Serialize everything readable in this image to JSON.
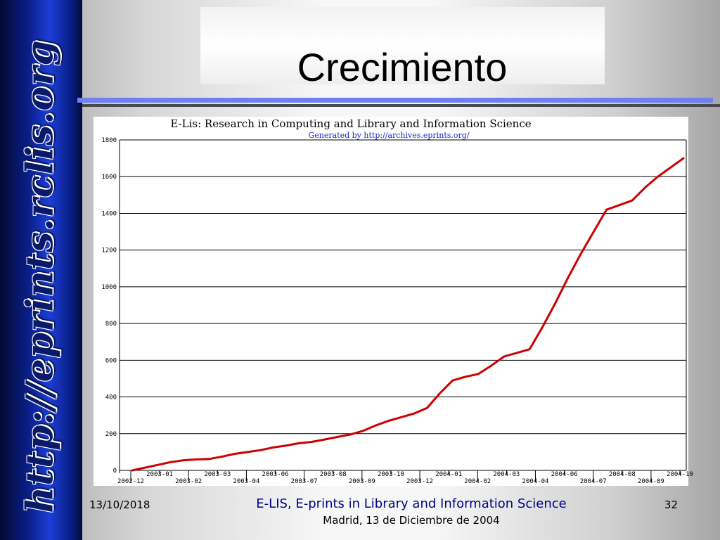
{
  "slide": {
    "title": "Crecimiento",
    "side_url": "http://eprints.rclis.org",
    "footer_date": "13/10/2018",
    "footer_org": "E-LIS, E-prints in Library and Information Science",
    "footer_place": "Madrid, 13 de Diciembre de 2004",
    "page_number": "32"
  },
  "chart_data": {
    "type": "line",
    "title": "E-Lis: Research in Computing and Library and Information Science",
    "subtitle": "Generated by http://archives.eprints.org/",
    "xlabel": "",
    "ylabel": "",
    "ylim": [
      0,
      1800
    ],
    "yticks": [
      0,
      200,
      400,
      600,
      800,
      1000,
      1200,
      1400,
      1600,
      1800
    ],
    "grid": true,
    "x": [
      "2002-12",
      "2003-01",
      "2003-02",
      "2003-03",
      "2003-04",
      "2003-06",
      "2003-07",
      "2003-08",
      "2003-09",
      "2003-10",
      "2003-12",
      "2004-01",
      "2004-02",
      "2004-03",
      "2004-04",
      "2004-06",
      "2004-07",
      "2004-08",
      "2004-09",
      "2004-10"
    ],
    "series": [
      {
        "name": "",
        "values": [
          [
            0,
            0
          ],
          [
            1,
            30
          ],
          [
            1.5,
            45
          ],
          [
            2,
            55
          ],
          [
            2.5,
            60
          ],
          [
            3,
            62
          ],
          [
            3.5,
            75
          ],
          [
            4,
            90
          ],
          [
            4.5,
            100
          ],
          [
            5,
            110
          ],
          [
            5.5,
            125
          ],
          [
            6,
            135
          ],
          [
            6.5,
            148
          ],
          [
            7,
            155
          ],
          [
            7.5,
            168
          ],
          [
            8,
            182
          ],
          [
            8.5,
            195
          ],
          [
            9,
            215
          ],
          [
            9.5,
            245
          ],
          [
            10,
            270
          ],
          [
            10.5,
            290
          ],
          [
            11,
            310
          ],
          [
            11.5,
            340
          ],
          [
            12,
            420
          ],
          [
            12.5,
            490
          ],
          [
            13,
            510
          ],
          [
            13.5,
            525
          ],
          [
            14,
            570
          ],
          [
            14.5,
            620
          ],
          [
            15,
            640
          ],
          [
            15.5,
            660
          ],
          [
            16,
            780
          ],
          [
            16.5,
            910
          ],
          [
            17,
            1050
          ],
          [
            17.5,
            1180
          ],
          [
            18,
            1300
          ],
          [
            18.5,
            1420
          ],
          [
            19,
            1445
          ],
          [
            19.5,
            1470
          ],
          [
            20,
            1540
          ],
          [
            20.5,
            1600
          ],
          [
            21,
            1650
          ],
          [
            21.5,
            1700
          ]
        ]
      }
    ],
    "line_color": "#cc0000"
  }
}
